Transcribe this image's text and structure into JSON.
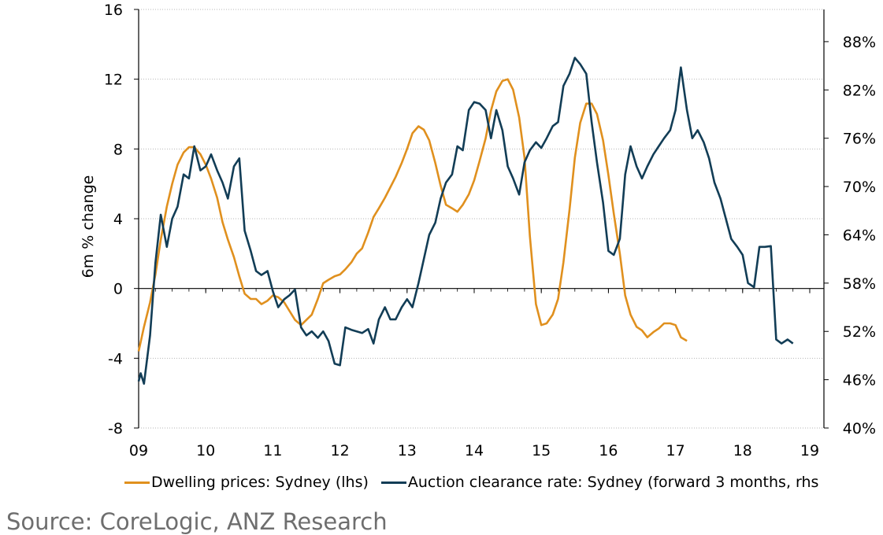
{
  "chart_data": {
    "type": "line",
    "title": "",
    "ylabel": "6m % change",
    "y2label": "",
    "ylim": [
      -8,
      16
    ],
    "y2lim": [
      40,
      92
    ],
    "yticks": [
      "16",
      "12",
      "8",
      "4",
      "0",
      "-4",
      "-8"
    ],
    "y2ticks": [
      "88%",
      "82%",
      "76%",
      "70%",
      "64%",
      "58%",
      "52%",
      "46%",
      "40%"
    ],
    "xticks": [
      "09",
      "10",
      "11",
      "12",
      "13",
      "14",
      "15",
      "16",
      "17",
      "18",
      "19"
    ],
    "xlim": [
      2009.0,
      2019.0
    ],
    "grid": true,
    "legend_position": "bottom",
    "colors": {
      "prices": "#e0901e",
      "clearance": "#123d56"
    },
    "series": [
      {
        "name": "Dwelling prices: Sydney (lhs)",
        "axis": "left",
        "points": [
          [
            2009.0,
            -3.6
          ],
          [
            2009.08,
            -2.2
          ],
          [
            2009.17,
            -0.8
          ],
          [
            2009.25,
            0.8
          ],
          [
            2009.33,
            2.8
          ],
          [
            2009.42,
            4.7
          ],
          [
            2009.5,
            6.0
          ],
          [
            2009.58,
            7.1
          ],
          [
            2009.67,
            7.8
          ],
          [
            2009.75,
            8.1
          ],
          [
            2009.83,
            8.1
          ],
          [
            2009.92,
            7.7
          ],
          [
            2010.0,
            7.1
          ],
          [
            2010.08,
            6.3
          ],
          [
            2010.17,
            5.2
          ],
          [
            2010.25,
            3.8
          ],
          [
            2010.33,
            2.8
          ],
          [
            2010.42,
            1.8
          ],
          [
            2010.5,
            0.7
          ],
          [
            2010.58,
            -0.3
          ],
          [
            2010.67,
            -0.6
          ],
          [
            2010.75,
            -0.6
          ],
          [
            2010.83,
            -0.9
          ],
          [
            2010.92,
            -0.7
          ],
          [
            2011.0,
            -0.4
          ],
          [
            2011.08,
            -0.5
          ],
          [
            2011.17,
            -0.8
          ],
          [
            2011.25,
            -1.3
          ],
          [
            2011.33,
            -1.8
          ],
          [
            2011.42,
            -2.1
          ],
          [
            2011.5,
            -1.8
          ],
          [
            2011.58,
            -1.5
          ],
          [
            2011.67,
            -0.6
          ],
          [
            2011.75,
            0.3
          ],
          [
            2011.83,
            0.5
          ],
          [
            2011.92,
            0.7
          ],
          [
            2012.0,
            0.8
          ],
          [
            2012.08,
            1.1
          ],
          [
            2012.17,
            1.5
          ],
          [
            2012.25,
            2.0
          ],
          [
            2012.33,
            2.3
          ],
          [
            2012.42,
            3.2
          ],
          [
            2012.5,
            4.1
          ],
          [
            2012.58,
            4.6
          ],
          [
            2012.67,
            5.2
          ],
          [
            2012.75,
            5.8
          ],
          [
            2012.83,
            6.4
          ],
          [
            2012.92,
            7.2
          ],
          [
            2013.0,
            8.0
          ],
          [
            2013.08,
            8.9
          ],
          [
            2013.17,
            9.3
          ],
          [
            2013.25,
            9.1
          ],
          [
            2013.33,
            8.5
          ],
          [
            2013.42,
            7.2
          ],
          [
            2013.5,
            5.9
          ],
          [
            2013.58,
            4.8
          ],
          [
            2013.67,
            4.6
          ],
          [
            2013.75,
            4.4
          ],
          [
            2013.83,
            4.8
          ],
          [
            2013.92,
            5.4
          ],
          [
            2014.0,
            6.2
          ],
          [
            2014.08,
            7.3
          ],
          [
            2014.17,
            8.6
          ],
          [
            2014.25,
            10.2
          ],
          [
            2014.33,
            11.3
          ],
          [
            2014.42,
            11.9
          ],
          [
            2014.5,
            12.0
          ],
          [
            2014.58,
            11.4
          ],
          [
            2014.67,
            9.8
          ],
          [
            2014.75,
            7.5
          ],
          [
            2014.83,
            3.0
          ],
          [
            2014.92,
            -0.9
          ],
          [
            2015.0,
            -2.1
          ],
          [
            2015.08,
            -2.0
          ],
          [
            2015.17,
            -1.5
          ],
          [
            2015.25,
            -0.6
          ],
          [
            2015.33,
            1.5
          ],
          [
            2015.42,
            4.5
          ],
          [
            2015.5,
            7.5
          ],
          [
            2015.58,
            9.5
          ],
          [
            2015.67,
            10.6
          ],
          [
            2015.75,
            10.6
          ],
          [
            2015.83,
            10.0
          ],
          [
            2015.92,
            8.5
          ],
          [
            2016.0,
            6.5
          ],
          [
            2016.08,
            4.3
          ],
          [
            2016.17,
            2.0
          ],
          [
            2016.25,
            -0.4
          ],
          [
            2016.33,
            -1.5
          ],
          [
            2016.42,
            -2.2
          ],
          [
            2016.5,
            -2.4
          ],
          [
            2016.58,
            -2.8
          ],
          [
            2016.67,
            -2.5
          ],
          [
            2016.75,
            -2.3
          ],
          [
            2016.83,
            -2.0
          ],
          [
            2016.92,
            -2.0
          ],
          [
            2017.0,
            -2.1
          ],
          [
            2017.08,
            -2.8
          ],
          [
            2017.17,
            -3.0
          ]
        ],
        "x_scale_note": ""
      },
      {
        "name": "Auction clearance rate: Sydney (forward 3 months, rhs",
        "axis": "right",
        "points": [
          [
            2009.0,
            45.8
          ],
          [
            2009.03,
            46.8
          ],
          [
            2009.08,
            45.5
          ],
          [
            2009.17,
            51.5
          ],
          [
            2009.25,
            60.5
          ],
          [
            2009.33,
            66.5
          ],
          [
            2009.42,
            62.5
          ],
          [
            2009.5,
            66.0
          ],
          [
            2009.58,
            67.5
          ],
          [
            2009.67,
            71.5
          ],
          [
            2009.75,
            71.0
          ],
          [
            2009.83,
            75.0
          ],
          [
            2009.92,
            72.0
          ],
          [
            2010.0,
            72.5
          ],
          [
            2010.08,
            74.0
          ],
          [
            2010.17,
            72.0
          ],
          [
            2010.25,
            70.5
          ],
          [
            2010.33,
            68.5
          ],
          [
            2010.42,
            72.5
          ],
          [
            2010.5,
            73.5
          ],
          [
            2010.58,
            64.5
          ],
          [
            2010.67,
            62.0
          ],
          [
            2010.75,
            59.5
          ],
          [
            2010.83,
            59.0
          ],
          [
            2010.92,
            59.5
          ],
          [
            2011.0,
            57.0
          ],
          [
            2011.08,
            55.0
          ],
          [
            2011.17,
            56.0
          ],
          [
            2011.25,
            56.5
          ],
          [
            2011.33,
            57.2
          ],
          [
            2011.42,
            52.5
          ],
          [
            2011.5,
            51.5
          ],
          [
            2011.58,
            52.0
          ],
          [
            2011.67,
            51.2
          ],
          [
            2011.75,
            52.0
          ],
          [
            2011.83,
            50.8
          ],
          [
            2011.92,
            48.0
          ],
          [
            2012.0,
            47.8
          ],
          [
            2012.08,
            52.5
          ],
          [
            2012.17,
            52.2
          ],
          [
            2012.25,
            52.0
          ],
          [
            2012.33,
            51.8
          ],
          [
            2012.42,
            52.3
          ],
          [
            2012.5,
            50.5
          ],
          [
            2012.58,
            53.5
          ],
          [
            2012.67,
            55.0
          ],
          [
            2012.75,
            53.5
          ],
          [
            2012.83,
            53.5
          ],
          [
            2012.92,
            55.0
          ],
          [
            2013.0,
            56.0
          ],
          [
            2013.08,
            55.0
          ],
          [
            2013.17,
            58.0
          ],
          [
            2013.25,
            61.0
          ],
          [
            2013.33,
            64.0
          ],
          [
            2013.42,
            65.5
          ],
          [
            2013.5,
            68.5
          ],
          [
            2013.58,
            70.5
          ],
          [
            2013.67,
            71.5
          ],
          [
            2013.75,
            75.0
          ],
          [
            2013.83,
            74.5
          ],
          [
            2013.92,
            79.5
          ],
          [
            2014.0,
            80.5
          ],
          [
            2014.08,
            80.3
          ],
          [
            2014.17,
            79.5
          ],
          [
            2014.25,
            76.0
          ],
          [
            2014.33,
            79.5
          ],
          [
            2014.42,
            77.0
          ],
          [
            2014.5,
            72.5
          ],
          [
            2014.58,
            71.0
          ],
          [
            2014.67,
            69.0
          ],
          [
            2014.75,
            73.0
          ],
          [
            2014.83,
            74.5
          ],
          [
            2014.92,
            75.5
          ],
          [
            2015.0,
            74.8
          ],
          [
            2015.08,
            76.0
          ],
          [
            2015.17,
            77.5
          ],
          [
            2015.25,
            78.0
          ],
          [
            2015.33,
            82.5
          ],
          [
            2015.42,
            84.0
          ],
          [
            2015.5,
            86.0
          ],
          [
            2015.58,
            85.2
          ],
          [
            2015.67,
            84.0
          ],
          [
            2015.75,
            78.0
          ],
          [
            2015.83,
            73.0
          ],
          [
            2015.92,
            68.0
          ],
          [
            2016.0,
            62.0
          ],
          [
            2016.08,
            61.5
          ],
          [
            2016.17,
            63.5
          ],
          [
            2016.25,
            71.5
          ],
          [
            2016.33,
            75.0
          ],
          [
            2016.42,
            72.5
          ],
          [
            2016.5,
            71.0
          ],
          [
            2016.58,
            72.5
          ],
          [
            2016.67,
            74.0
          ],
          [
            2016.75,
            75.0
          ],
          [
            2016.83,
            76.0
          ],
          [
            2016.92,
            77.0
          ],
          [
            2017.0,
            79.5
          ],
          [
            2017.08,
            84.8
          ],
          [
            2017.17,
            79.5
          ],
          [
            2017.25,
            76.0
          ],
          [
            2017.33,
            77.0
          ],
          [
            2017.42,
            75.5
          ],
          [
            2017.5,
            73.5
          ],
          [
            2017.58,
            70.5
          ],
          [
            2017.67,
            68.5
          ],
          [
            2017.75,
            66.0
          ],
          [
            2017.83,
            63.5
          ],
          [
            2017.92,
            62.5
          ],
          [
            2018.0,
            61.5
          ],
          [
            2018.08,
            58.0
          ],
          [
            2018.17,
            57.5
          ],
          [
            2018.25,
            62.5
          ],
          [
            2018.33,
            62.5
          ],
          [
            2018.42,
            62.6
          ],
          [
            2018.5,
            51.0
          ],
          [
            2018.58,
            50.5
          ],
          [
            2018.67,
            51.0
          ],
          [
            2018.75,
            50.5
          ]
        ]
      }
    ]
  },
  "legend": {
    "prices_label": "Dwelling prices: Sydney (lhs)",
    "clearance_label": "Auction clearance rate: Sydney (forward 3 months, rhs"
  },
  "source": "Source: CoreLogic, ANZ Research"
}
